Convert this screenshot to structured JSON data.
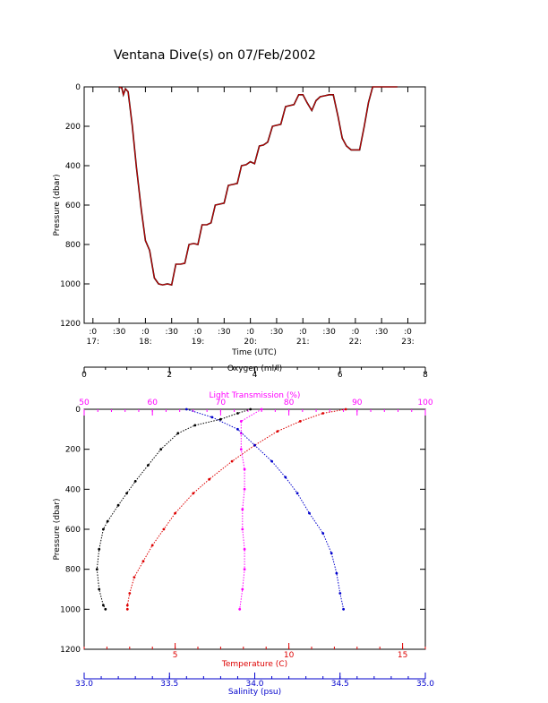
{
  "figure": {
    "title": "Ventana Dive(s) on 07/Feb/2002"
  },
  "chart_data": [
    {
      "type": "line",
      "title": "Ventana Dive(s) on 07/Feb/2002",
      "xlabel": "Time (UTC)",
      "ylabel": "Pressure (dbar)",
      "ylim": [
        1200,
        0
      ],
      "x_ticks": [
        {
          "top": ":0",
          "bottom": "17:"
        },
        {
          "top": ":30",
          "bottom": ""
        },
        {
          "top": ":0",
          "bottom": "18:"
        },
        {
          "top": ":30",
          "bottom": ""
        },
        {
          "top": ":0",
          "bottom": "19:"
        },
        {
          "top": ":30",
          "bottom": ""
        },
        {
          "top": ":0",
          "bottom": "20:"
        },
        {
          "top": ":30",
          "bottom": ""
        },
        {
          "top": ":0",
          "bottom": "21:"
        },
        {
          "top": ":30",
          "bottom": ""
        },
        {
          "top": ":0",
          "bottom": "22:"
        },
        {
          "top": ":30",
          "bottom": ""
        },
        {
          "top": ":0",
          "bottom": "23:"
        }
      ],
      "y_ticks": [
        "0",
        "200",
        "400",
        "600",
        "800",
        "1000",
        "1200"
      ],
      "x_range_hours": [
        16.833,
        23.333
      ],
      "series": [
        {
          "color": "#cc0000",
          "x_hours": [
            17.5,
            17.55,
            17.58,
            17.62,
            17.67,
            17.75,
            17.83,
            17.92,
            18.0,
            18.08,
            18.17,
            18.25,
            18.33,
            18.42,
            18.5,
            18.58,
            18.67,
            18.75,
            18.83,
            18.92,
            19.0,
            19.08,
            19.17,
            19.25,
            19.33,
            19.42,
            19.5,
            19.58,
            19.67,
            19.75,
            19.83,
            19.92,
            20.0,
            20.08,
            20.17,
            20.25,
            20.33,
            20.42,
            20.5,
            20.58,
            20.67,
            20.75,
            20.83,
            20.92,
            21.0,
            21.08,
            21.17,
            21.25,
            21.33,
            21.42,
            21.5,
            21.58,
            21.67,
            21.75,
            21.83,
            21.92,
            22.0,
            22.08,
            22.17,
            22.25,
            22.33,
            22.42,
            22.5,
            22.58,
            22.67,
            22.75,
            22.8
          ],
          "pressure_dbar": [
            0,
            5,
            40,
            10,
            25,
            200,
            410,
            620,
            780,
            830,
            970,
            1000,
            1005,
            1000,
            1005,
            900,
            900,
            895,
            800,
            795,
            800,
            700,
            700,
            690,
            600,
            595,
            590,
            500,
            495,
            490,
            400,
            395,
            380,
            390,
            300,
            295,
            280,
            200,
            195,
            190,
            100,
            95,
            90,
            40,
            40,
            80,
            120,
            70,
            50,
            45,
            40,
            40,
            150,
            260,
            300,
            320,
            320,
            320,
            200,
            80,
            0,
            0,
            0,
            0,
            0,
            0,
            0
          ]
        }
      ]
    },
    {
      "type": "scatter",
      "ylabel": "Pressure (dbar)",
      "ylim": [
        1200,
        0
      ],
      "y_ticks": [
        "0",
        "200",
        "400",
        "600",
        "800",
        "1000",
        "1200"
      ],
      "axes": [
        {
          "name": "Oxygen (ml/l)",
          "position": "top-outer",
          "color": "#000000",
          "range": [
            0,
            8
          ],
          "ticks": [
            "0",
            "2",
            "4",
            "6",
            "8"
          ]
        },
        {
          "name": "Light Transmission (%)",
          "position": "top-inner",
          "color": "#ff00ff",
          "range": [
            50,
            100
          ],
          "ticks": [
            "50",
            "60",
            "70",
            "80",
            "90",
            "100"
          ]
        },
        {
          "name": "Temperature (C)",
          "position": "bottom-inner",
          "color": "#dd0000",
          "range": [
            1,
            16
          ],
          "ticks": [
            "5",
            "10",
            "15"
          ]
        },
        {
          "name": "Salinity (psu)",
          "position": "bottom-outer",
          "color": "#0000cc",
          "range": [
            33.0,
            35.0
          ],
          "ticks": [
            "33.0",
            "33.5",
            "34.0",
            "34.5",
            "35.0"
          ]
        }
      ],
      "series": [
        {
          "axis": "Oxygen (ml/l)",
          "color": "#000000",
          "points": [
            [
              3.9,
              0
            ],
            [
              3.6,
              20
            ],
            [
              3.2,
              50
            ],
            [
              2.6,
              80
            ],
            [
              2.2,
              120
            ],
            [
              1.8,
              200
            ],
            [
              1.5,
              280
            ],
            [
              1.2,
              360
            ],
            [
              1.0,
              420
            ],
            [
              0.8,
              480
            ],
            [
              0.55,
              560
            ],
            [
              0.45,
              600
            ],
            [
              0.35,
              700
            ],
            [
              0.3,
              800
            ],
            [
              0.35,
              900
            ],
            [
              0.45,
              980
            ],
            [
              0.5,
              1000
            ]
          ]
        },
        {
          "axis": "Light Transmission (%)",
          "color": "#ff00ff",
          "points": [
            [
              76,
              0
            ],
            [
              73,
              60
            ],
            [
              73,
              120
            ],
            [
              73,
              200
            ],
            [
              73.5,
              300
            ],
            [
              73.5,
              400
            ],
            [
              73.2,
              500
            ],
            [
              73.2,
              600
            ],
            [
              73.5,
              700
            ],
            [
              73.5,
              800
            ],
            [
              73.2,
              900
            ],
            [
              72.8,
              1000
            ]
          ]
        },
        {
          "axis": "Temperature (C)",
          "color": "#dd0000",
          "points": [
            [
              12.5,
              0
            ],
            [
              11.5,
              20
            ],
            [
              10.5,
              60
            ],
            [
              9.5,
              110
            ],
            [
              8.5,
              180
            ],
            [
              7.5,
              260
            ],
            [
              6.5,
              350
            ],
            [
              5.8,
              420
            ],
            [
              5.0,
              520
            ],
            [
              4.5,
              600
            ],
            [
              4.0,
              680
            ],
            [
              3.6,
              760
            ],
            [
              3.2,
              840
            ],
            [
              3.0,
              920
            ],
            [
              2.9,
              980
            ],
            [
              2.9,
              1000
            ]
          ]
        },
        {
          "axis": "Salinity (psu)",
          "color": "#0000cc",
          "points": [
            [
              33.6,
              0
            ],
            [
              33.75,
              40
            ],
            [
              33.9,
              100
            ],
            [
              34.0,
              180
            ],
            [
              34.1,
              260
            ],
            [
              34.18,
              340
            ],
            [
              34.25,
              420
            ],
            [
              34.32,
              520
            ],
            [
              34.4,
              620
            ],
            [
              34.45,
              720
            ],
            [
              34.48,
              820
            ],
            [
              34.5,
              920
            ],
            [
              34.52,
              1000
            ]
          ]
        }
      ]
    }
  ]
}
